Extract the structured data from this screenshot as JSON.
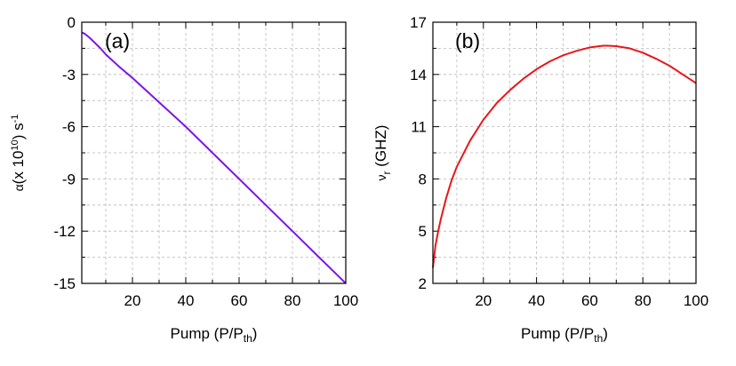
{
  "chart_data": [
    {
      "type": "line",
      "panel_label": "(a)",
      "xlabel": {
        "main": "Pump (P/P",
        "sub": "th",
        "close": ")"
      },
      "ylabel": {
        "sym": "α",
        "pre": "(x 10",
        "sup": "10",
        "mid": ") s",
        "sup2": "-1"
      },
      "xlim": [
        1,
        100
      ],
      "ylim": [
        -15,
        0
      ],
      "x_ticks": [
        20,
        40,
        60,
        80,
        100
      ],
      "y_ticks": [
        0,
        -3,
        -6,
        -9,
        -12,
        -15
      ],
      "x_minor": [
        10,
        30,
        50,
        70,
        90
      ],
      "y_minor": [
        -1.5,
        -4.5,
        -7.5,
        -10.5,
        -13.5
      ],
      "grid": true,
      "series": [
        {
          "color": "#7b16e8",
          "x": [
            1,
            2,
            4,
            6,
            8,
            10,
            15,
            20,
            30,
            40,
            50,
            60,
            70,
            80,
            90,
            100
          ],
          "y": [
            -0.6,
            -0.65,
            -0.9,
            -1.2,
            -1.5,
            -1.85,
            -2.55,
            -3.2,
            -4.6,
            -6.0,
            -7.5,
            -9.0,
            -10.5,
            -12.0,
            -13.5,
            -15.0
          ]
        }
      ]
    },
    {
      "type": "line",
      "panel_label": "(b)",
      "xlabel": {
        "main": "Pump (P/P",
        "sub": "th",
        "close": ")"
      },
      "ylabel": {
        "sym": "ν",
        "sub": "r",
        "post": " (GHZ)"
      },
      "xlim": [
        1,
        100
      ],
      "ylim": [
        2,
        17
      ],
      "x_ticks": [
        20,
        40,
        60,
        80,
        100
      ],
      "y_ticks": [
        17,
        14,
        11,
        8,
        5,
        2
      ],
      "x_minor": [
        10,
        30,
        50,
        70,
        90
      ],
      "y_minor": [
        15.5,
        12.5,
        9.5,
        6.5,
        3.5
      ],
      "grid": true,
      "series": [
        {
          "color": "#e8161a",
          "x": [
            1,
            2,
            3,
            4,
            6,
            8,
            10,
            15,
            20,
            25,
            30,
            35,
            40,
            45,
            50,
            55,
            60,
            65,
            67,
            70,
            75,
            80,
            85,
            90,
            95,
            100
          ],
          "y": [
            2.9,
            4.2,
            5.0,
            5.7,
            6.9,
            7.9,
            8.7,
            10.2,
            11.4,
            12.35,
            13.1,
            13.75,
            14.3,
            14.75,
            15.1,
            15.35,
            15.55,
            15.65,
            15.65,
            15.62,
            15.5,
            15.25,
            14.9,
            14.5,
            14.0,
            13.5
          ]
        }
      ]
    }
  ]
}
